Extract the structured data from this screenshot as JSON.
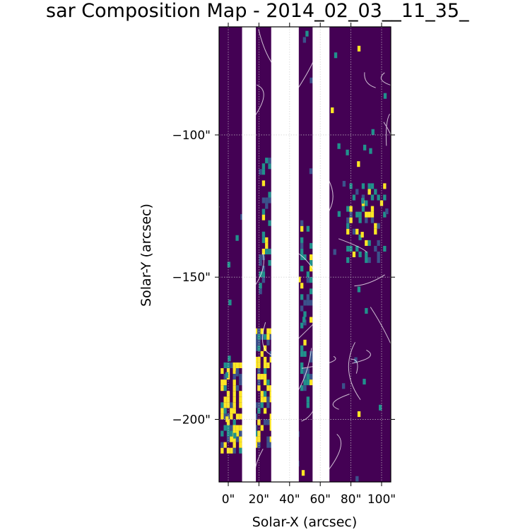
{
  "chart_data": {
    "type": "heatmap",
    "title": "sar Composition Map - 2014_02_03__11_35_",
    "xlabel": "Solar-X (arcsec)",
    "ylabel": "Solar-Y (arcsec)",
    "xlim": [
      -6,
      106
    ],
    "ylim": [
      -222,
      -62
    ],
    "x_ticks": [
      {
        "value": 0,
        "label": "0\""
      },
      {
        "value": 20,
        "label": "20\""
      },
      {
        "value": 40,
        "label": "40\""
      },
      {
        "value": 60,
        "label": "60\""
      },
      {
        "value": 80,
        "label": "80\""
      },
      {
        "value": 100,
        "label": "100\""
      }
    ],
    "y_ticks": [
      {
        "value": -100,
        "label": "−100\""
      },
      {
        "value": -150,
        "label": "−150\""
      },
      {
        "value": -200,
        "label": "−200\""
      }
    ],
    "grid": true,
    "colormap": {
      "low": "#440154",
      "mid": "#21918c",
      "high": "#fde725"
    },
    "missing_x_ranges": [
      [
        9,
        18
      ],
      [
        28,
        46
      ],
      [
        55,
        66
      ]
    ],
    "hot_regions": [
      {
        "x": [
          -5,
          8
        ],
        "y": [
          -212,
          -180
        ],
        "intensity": "high"
      },
      {
        "x": [
          17,
          28
        ],
        "y": [
          -210,
          -168
        ],
        "intensity": "high"
      },
      {
        "x": [
          20,
          27
        ],
        "y": [
          -160,
          -108
        ],
        "intensity": "medium"
      },
      {
        "x": [
          77,
          103
        ],
        "y": [
          -145,
          -118
        ],
        "intensity": "medium"
      },
      {
        "x": [
          47,
          55
        ],
        "y": [
          -200,
          -130
        ],
        "intensity": "medium"
      }
    ],
    "colors": {
      "background": "#440154",
      "contour": "#ffffff",
      "grid": "#cccccc"
    }
  }
}
